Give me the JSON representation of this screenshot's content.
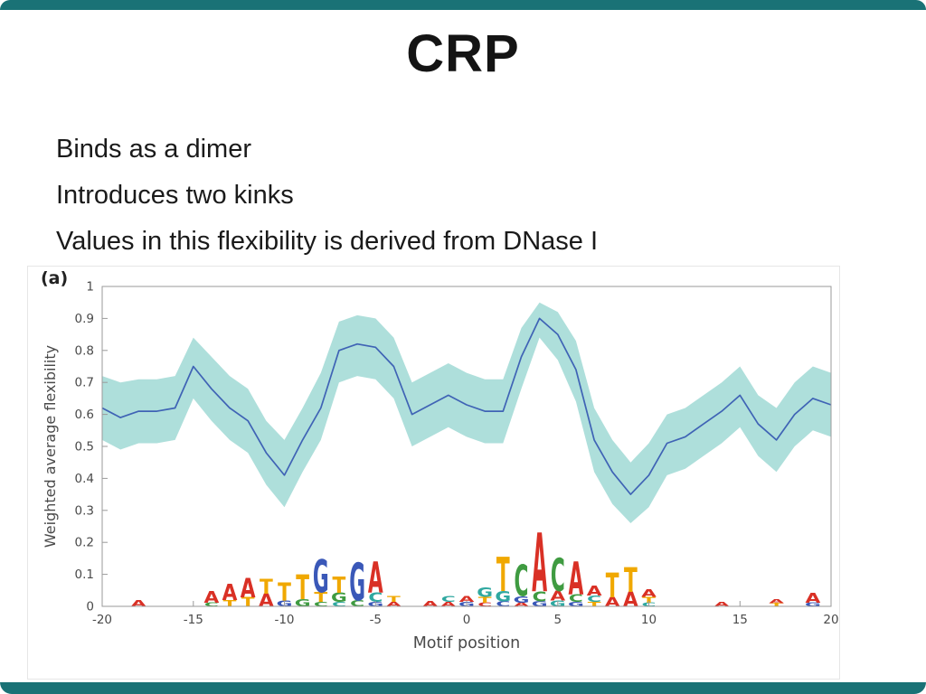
{
  "slide": {
    "title": "CRP",
    "accent_color": "#1a7276",
    "bullets": [
      "Binds as a dimer",
      "Introduces two kinks",
      "Values in this flexibility is derived from DNase I"
    ]
  },
  "figure": {
    "panel_label": "(a)"
  },
  "chart_data": {
    "type": "line",
    "title": "",
    "xlabel": "Motif position",
    "ylabel": "Weighted average flexibility",
    "xlim": [
      -20,
      20
    ],
    "ylim": [
      0,
      1
    ],
    "grid": false,
    "legend": "none",
    "x_ticks": [
      -20,
      -15,
      -10,
      -5,
      0,
      5,
      10,
      15,
      20
    ],
    "y_ticks": [
      "0",
      "0.1",
      "0.2",
      "0.3",
      "0.4",
      "0.5",
      "0.6",
      "0.7",
      "0.8",
      "0.9",
      "1"
    ],
    "line_color": "#3f63b5",
    "x": [
      -20,
      -19,
      -18,
      -17,
      -16,
      -15,
      -14,
      -13,
      -12,
      -11,
      -10,
      -9,
      -8,
      -7,
      -6,
      -5,
      -4,
      -3,
      -2,
      -1,
      0,
      1,
      2,
      3,
      4,
      5,
      6,
      7,
      8,
      9,
      10,
      11,
      12,
      13,
      14,
      15,
      16,
      17,
      18,
      19,
      20
    ],
    "series": [
      {
        "name": "mean weighted average flexibility",
        "values": [
          0.62,
          0.59,
          0.61,
          0.61,
          0.62,
          0.75,
          0.68,
          0.62,
          0.58,
          0.48,
          0.41,
          0.52,
          0.62,
          0.8,
          0.82,
          0.81,
          0.75,
          0.6,
          0.63,
          0.66,
          0.63,
          0.61,
          0.61,
          0.78,
          0.9,
          0.85,
          0.74,
          0.52,
          0.42,
          0.35,
          0.41,
          0.51,
          0.53,
          0.57,
          0.61,
          0.66,
          0.57,
          0.52,
          0.6,
          0.65,
          0.63
        ]
      }
    ],
    "band": {
      "name": "uncertainty band",
      "color": "#aedfdb",
      "upper": [
        0.72,
        0.7,
        0.71,
        0.71,
        0.72,
        0.84,
        0.78,
        0.72,
        0.68,
        0.58,
        0.52,
        0.62,
        0.73,
        0.89,
        0.91,
        0.9,
        0.84,
        0.7,
        0.73,
        0.76,
        0.73,
        0.71,
        0.71,
        0.87,
        0.95,
        0.92,
        0.83,
        0.62,
        0.52,
        0.45,
        0.51,
        0.6,
        0.62,
        0.66,
        0.7,
        0.75,
        0.66,
        0.62,
        0.7,
        0.75,
        0.73
      ],
      "lower": [
        0.52,
        0.49,
        0.51,
        0.51,
        0.52,
        0.65,
        0.58,
        0.52,
        0.48,
        0.38,
        0.31,
        0.42,
        0.52,
        0.7,
        0.72,
        0.71,
        0.65,
        0.5,
        0.53,
        0.56,
        0.53,
        0.51,
        0.51,
        0.68,
        0.84,
        0.77,
        0.64,
        0.42,
        0.32,
        0.26,
        0.31,
        0.41,
        0.43,
        0.47,
        0.51,
        0.56,
        0.47,
        0.42,
        0.5,
        0.55,
        0.53
      ]
    },
    "sequence_logo": {
      "stacks": [
        {
          "pos": -18,
          "letters": [
            [
              "A",
              "#d93025",
              0.02
            ]
          ]
        },
        {
          "pos": -14,
          "letters": [
            [
              "A",
              "#d93025",
              0.035
            ],
            [
              "C",
              "#3f9b41",
              0.012
            ]
          ]
        },
        {
          "pos": -13,
          "letters": [
            [
              "A",
              "#d93025",
              0.05
            ],
            [
              "T",
              "#f0a800",
              0.02
            ]
          ]
        },
        {
          "pos": -12,
          "letters": [
            [
              "A",
              "#d93025",
              0.06
            ],
            [
              "T",
              "#f0a800",
              0.028
            ]
          ]
        },
        {
          "pos": -11,
          "letters": [
            [
              "T",
              "#f0a800",
              0.045
            ],
            [
              "A",
              "#d93025",
              0.04
            ]
          ]
        },
        {
          "pos": -10,
          "letters": [
            [
              "T",
              "#f0a800",
              0.055
            ],
            [
              "G",
              "#3a58b8",
              0.018
            ]
          ]
        },
        {
          "pos": -9,
          "letters": [
            [
              "T",
              "#f0a800",
              0.075
            ],
            [
              "G",
              "#3f9b41",
              0.022
            ]
          ]
        },
        {
          "pos": -8,
          "letters": [
            [
              "G",
              "#3a58b8",
              0.1
            ],
            [
              "T",
              "#f0a800",
              0.03
            ],
            [
              "C",
              "#3f9b41",
              0.014
            ]
          ]
        },
        {
          "pos": -7,
          "letters": [
            [
              "T",
              "#f0a800",
              0.05
            ],
            [
              "G",
              "#3f9b41",
              0.028
            ],
            [
              "C",
              "#2fa8a0",
              0.014
            ]
          ]
        },
        {
          "pos": -6,
          "letters": [
            [
              "G",
              "#3a58b8",
              0.115
            ],
            [
              "C",
              "#3f9b41",
              0.02
            ]
          ]
        },
        {
          "pos": -5,
          "letters": [
            [
              "A",
              "#d93025",
              0.095
            ],
            [
              "C",
              "#2fa8a0",
              0.028
            ],
            [
              "G",
              "#3a58b8",
              0.014
            ]
          ]
        },
        {
          "pos": -4,
          "letters": [
            [
              "T",
              "#f0a800",
              0.018
            ],
            [
              "A",
              "#d93025",
              0.014
            ]
          ]
        },
        {
          "pos": -2,
          "letters": [
            [
              "A",
              "#d93025",
              0.016
            ]
          ]
        },
        {
          "pos": -1,
          "letters": [
            [
              "C",
              "#2fa8a0",
              0.018
            ],
            [
              "A",
              "#d93025",
              0.014
            ]
          ]
        },
        {
          "pos": 0,
          "letters": [
            [
              "A",
              "#d93025",
              0.018
            ],
            [
              "G",
              "#3a58b8",
              0.014
            ]
          ]
        },
        {
          "pos": 1,
          "letters": [
            [
              "G",
              "#2fa8a0",
              0.028
            ],
            [
              "T",
              "#f0a800",
              0.018
            ],
            [
              "C",
              "#d93025",
              0.012
            ]
          ]
        },
        {
          "pos": 2,
          "letters": [
            [
              "T",
              "#f0a800",
              0.105
            ],
            [
              "G",
              "#2fa8a0",
              0.032
            ],
            [
              "C",
              "#3a58b8",
              0.016
            ]
          ]
        },
        {
          "pos": 3,
          "letters": [
            [
              "C",
              "#3f9b41",
              0.095
            ],
            [
              "G",
              "#3a58b8",
              0.02
            ],
            [
              "A",
              "#d93025",
              0.012
            ]
          ]
        },
        {
          "pos": 4,
          "letters": [
            [
              "A",
              "#d93025",
              0.18
            ],
            [
              "C",
              "#3f9b41",
              0.03
            ],
            [
              "G",
              "#3a58b8",
              0.016
            ]
          ]
        },
        {
          "pos": 5,
          "letters": [
            [
              "C",
              "#3f9b41",
              0.1
            ],
            [
              "A",
              "#d93025",
              0.03
            ],
            [
              "G",
              "#2fa8a0",
              0.018
            ]
          ]
        },
        {
          "pos": 6,
          "letters": [
            [
              "A",
              "#d93025",
              0.1
            ],
            [
              "C",
              "#3f9b41",
              0.024
            ],
            [
              "G",
              "#3a58b8",
              0.014
            ]
          ]
        },
        {
          "pos": 7,
          "letters": [
            [
              "A",
              "#d93025",
              0.03
            ],
            [
              "C",
              "#2fa8a0",
              0.02
            ],
            [
              "T",
              "#f0a800",
              0.014
            ]
          ]
        },
        {
          "pos": 8,
          "letters": [
            [
              "T",
              "#f0a800",
              0.075
            ],
            [
              "A",
              "#d93025",
              0.028
            ]
          ]
        },
        {
          "pos": 9,
          "letters": [
            [
              "T",
              "#f0a800",
              0.075
            ],
            [
              "A",
              "#d93025",
              0.045
            ]
          ]
        },
        {
          "pos": 10,
          "letters": [
            [
              "A",
              "#d93025",
              0.024
            ],
            [
              "T",
              "#f0a800",
              0.018
            ],
            [
              "C",
              "#2fa8a0",
              0.012
            ]
          ]
        },
        {
          "pos": 14,
          "letters": [
            [
              "A",
              "#d93025",
              0.014
            ]
          ]
        },
        {
          "pos": 17,
          "letters": [
            [
              "A",
              "#d93025",
              0.012
            ],
            [
              "T",
              "#f0a800",
              0.01
            ]
          ]
        },
        {
          "pos": 19,
          "letters": [
            [
              "A",
              "#d93025",
              0.03
            ],
            [
              "G",
              "#3a58b8",
              0.012
            ]
          ]
        }
      ]
    }
  }
}
